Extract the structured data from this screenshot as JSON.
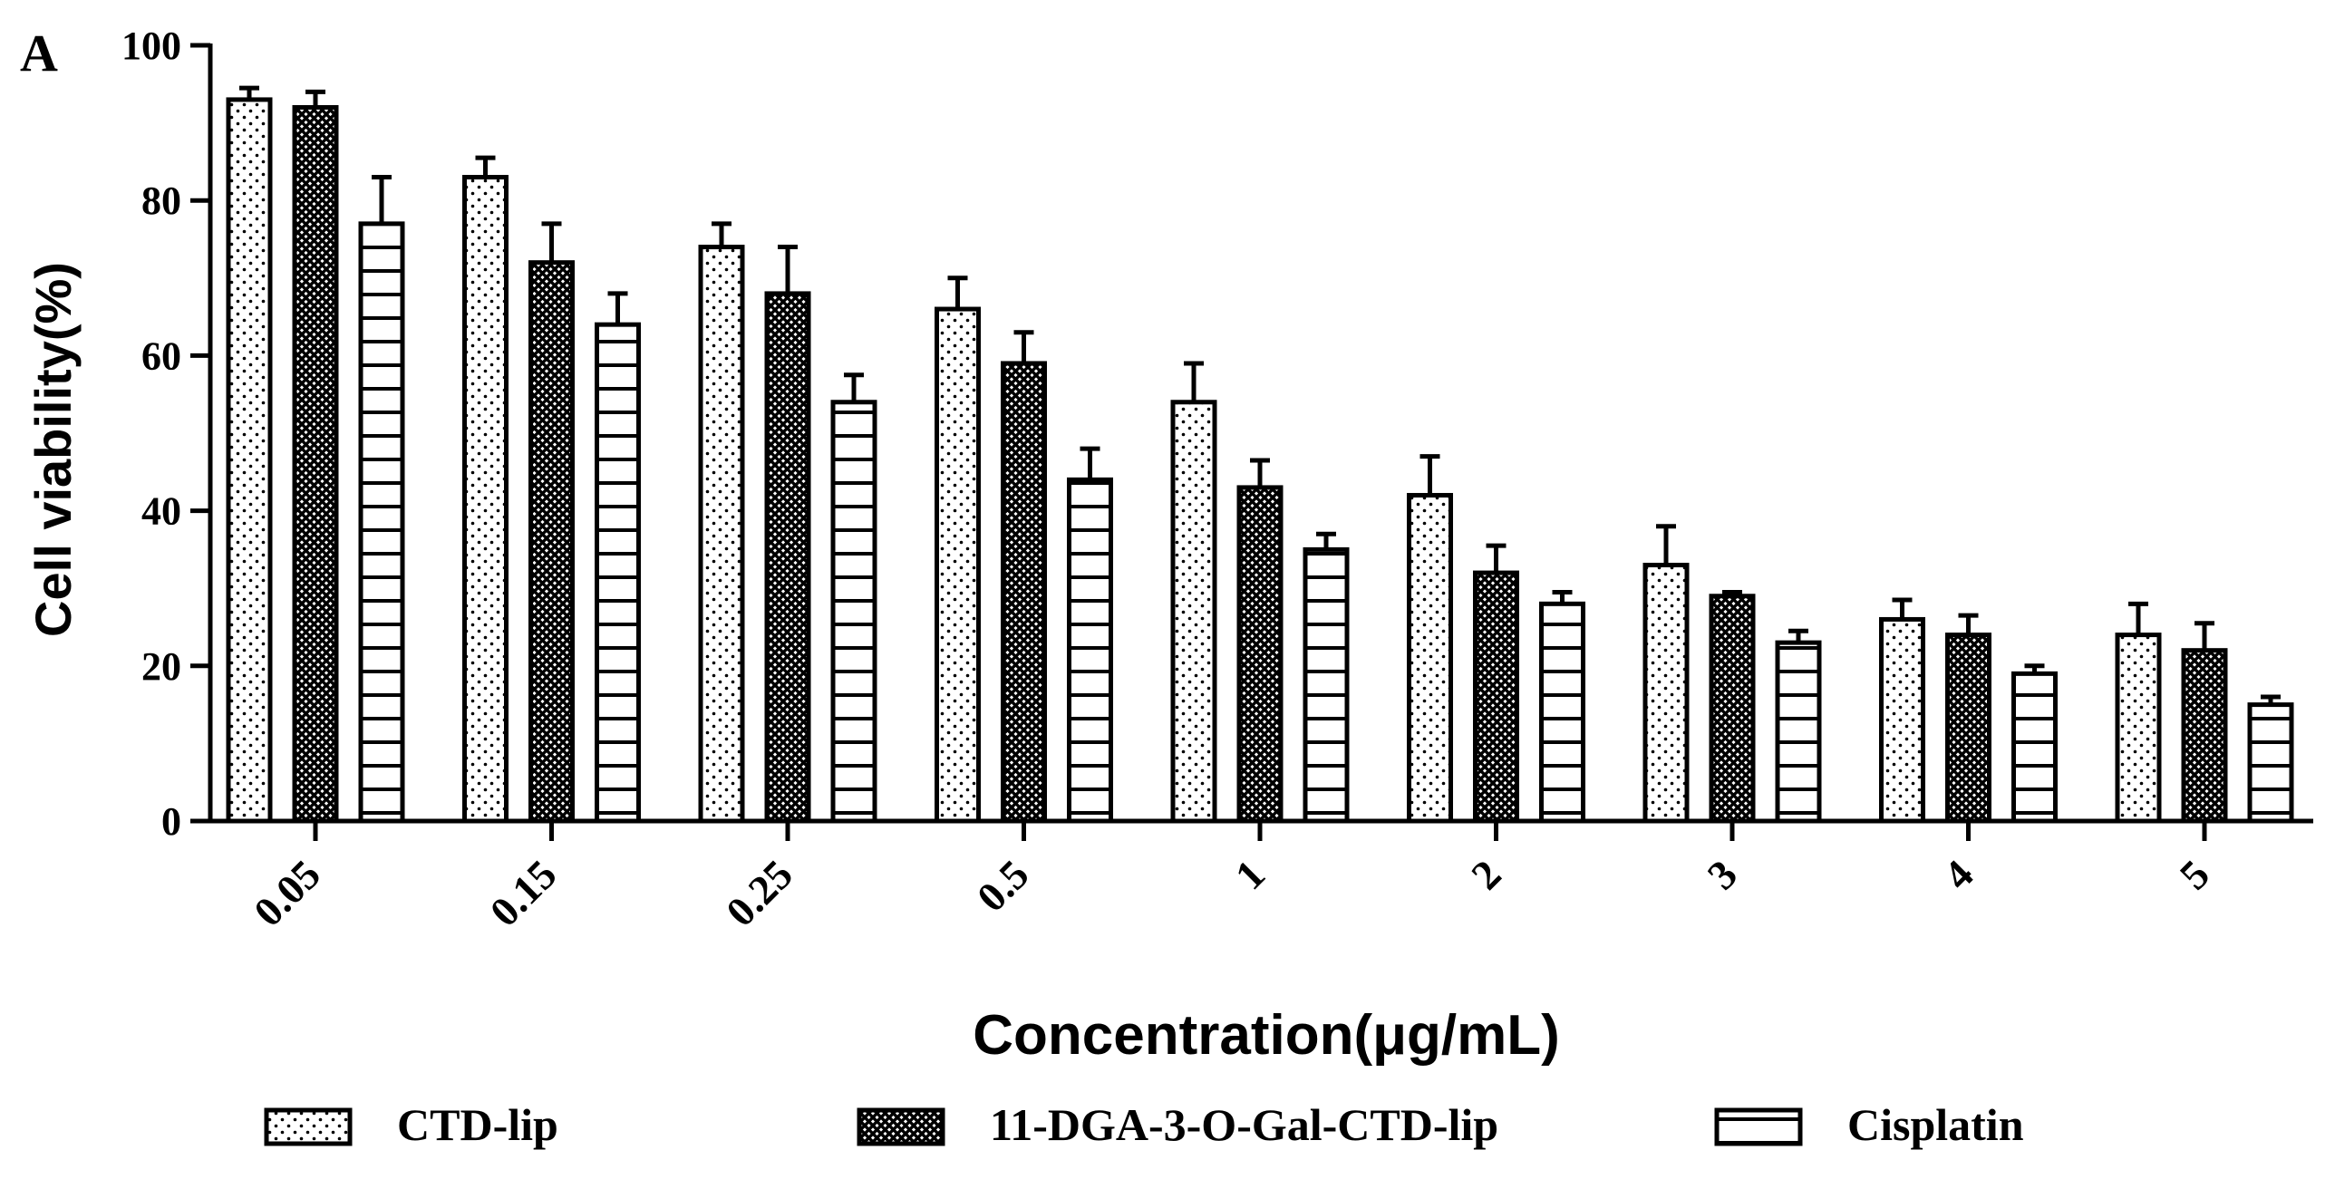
{
  "chart_data": {
    "type": "bar",
    "panel_label": "A",
    "title": "",
    "xlabel": "Concentration(μg/mL)",
    "ylabel": "Cell viability(%)",
    "ylim": [
      0,
      100
    ],
    "yticks": [
      "0",
      "20",
      "40",
      "60",
      "80",
      "100"
    ],
    "categories": [
      "0.05",
      "0.15",
      "0.25",
      "0.5",
      "1",
      "2",
      "3",
      "4",
      "5"
    ],
    "grid": false,
    "legend_position": "bottom",
    "series": [
      {
        "name": "CTD-lip",
        "pattern": "dots",
        "values": [
          93,
          83,
          74,
          66,
          54,
          42,
          33,
          26,
          24
        ],
        "errors": [
          1.5,
          2.5,
          3,
          4,
          5,
          5,
          5,
          2.5,
          4
        ]
      },
      {
        "name": "11-DGA-3-O-Gal-CTD-lip",
        "pattern": "crosshatch",
        "values": [
          92,
          72,
          68,
          59,
          43,
          32,
          29,
          24,
          22
        ],
        "errors": [
          2,
          5,
          6,
          4,
          3.5,
          3.5,
          0.5,
          2.5,
          3.5
        ]
      },
      {
        "name": "Cisplatin",
        "pattern": "hlines",
        "values": [
          77,
          64,
          54,
          44,
          35,
          28,
          23,
          19,
          15
        ],
        "errors": [
          6,
          4,
          3.5,
          4,
          2,
          1.5,
          1.5,
          1,
          1
        ]
      }
    ]
  }
}
